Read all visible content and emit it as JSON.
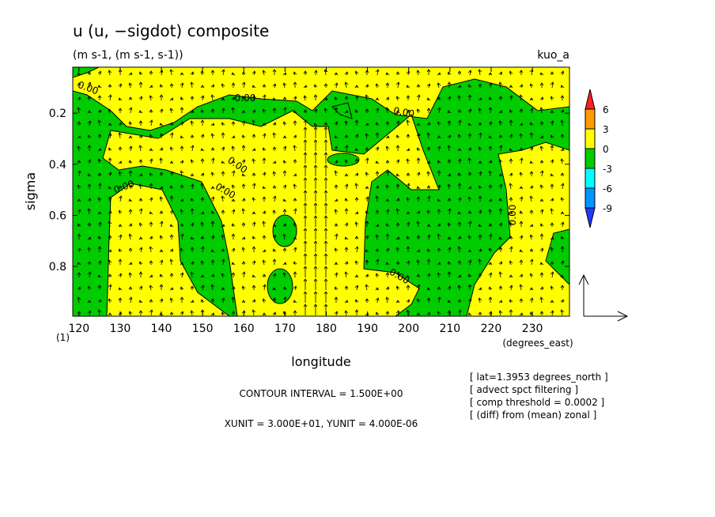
{
  "chart_data": {
    "type": "contour",
    "title": "u (u, −sigdot) composite",
    "subtitle": "(m s-1, (m s-1, s-1))",
    "tag": "kuo_a",
    "xlabel": "longitude",
    "ylabel": "sigma",
    "xunit_label": "(degrees_east)",
    "y_extra": "(1)",
    "xlim": [
      118.5,
      239
    ],
    "ylim": [
      0.02,
      0.995
    ],
    "y_inverted": true,
    "xticks": [
      120,
      130,
      140,
      150,
      160,
      170,
      180,
      190,
      200,
      210,
      220,
      230
    ],
    "yticks": [
      0.2,
      0.4,
      0.6,
      0.8
    ],
    "levels": [
      6,
      3,
      0,
      -3,
      -6,
      -9
    ],
    "colors": [
      "#ff2020",
      "#ff9900",
      "#ffff00",
      "#00cc00",
      "#00ffff",
      "#0096ff",
      "#1e3cff"
    ],
    "contour_values": [
      0,
      0,
      0,
      0,
      0,
      0,
      0,
      0
    ],
    "contour_value_labels": [
      "0.00",
      "0.00",
      "0.00",
      "0.00",
      "0.00",
      "0.00",
      "0.00",
      "0.00"
    ],
    "contour_interval": "CONTOUR INTERVAL = 1.500E+00",
    "vector_units": "XUNIT = 3.000E+01, YUNIT = 4.000E-06",
    "notes": [
      "[ lat=1.3953 degrees_north ]",
      "[ advect spct filtering ]",
      "[ comp threshold = 0.0002 ]",
      "[ (diff) from (mean) zonal ]"
    ]
  }
}
